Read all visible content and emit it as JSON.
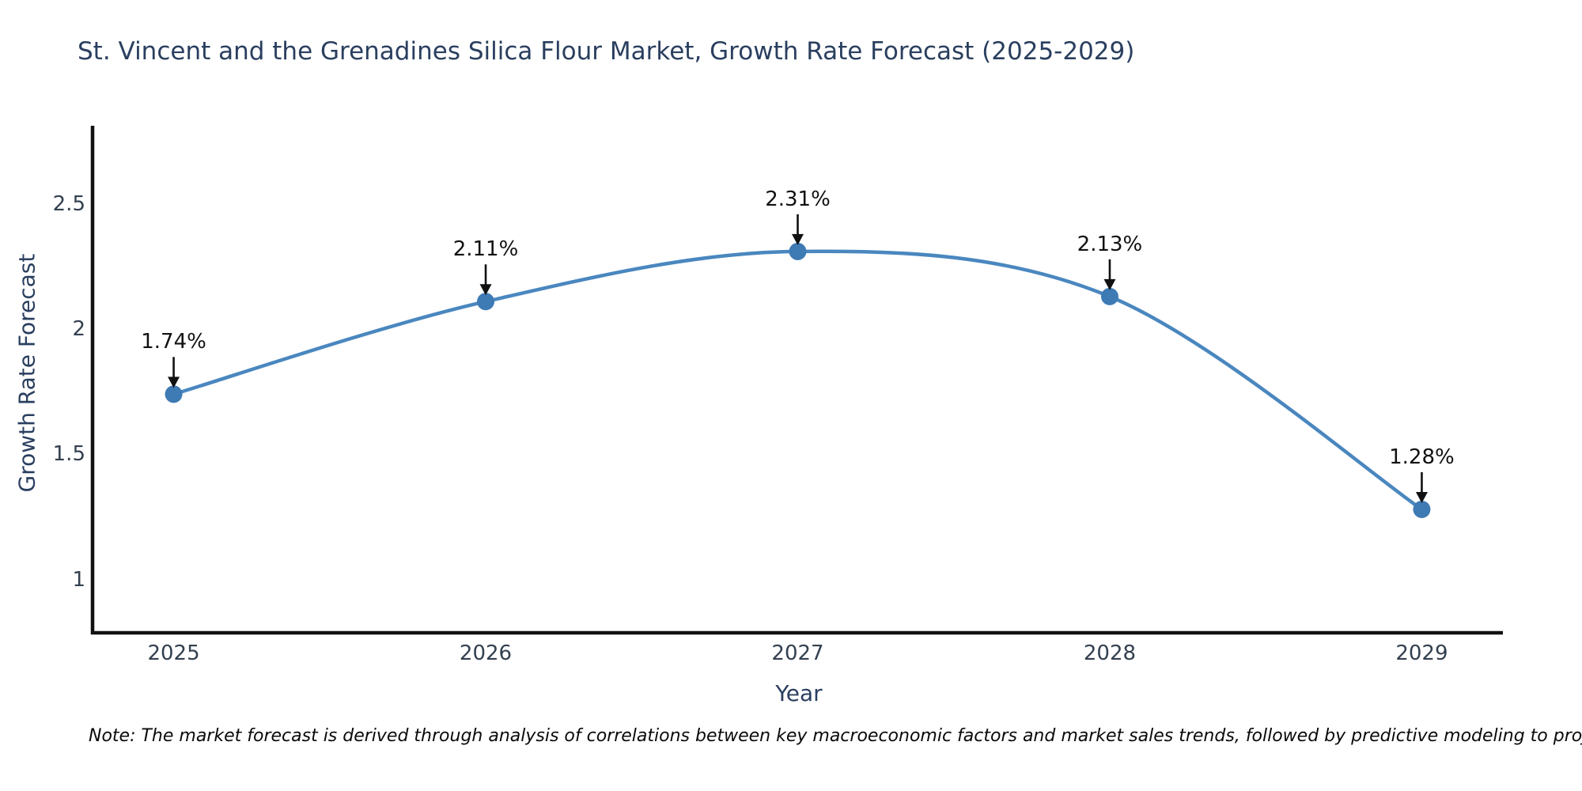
{
  "title": "St. Vincent and the Grenadines Silica Flour Market, Growth Rate Forecast (2025-2029)",
  "footnote": "Note: The market forecast is derived through analysis of correlations between key macroeconomic factors and market sales trends, followed by predictive modeling to project future sales",
  "chart_data": {
    "type": "line",
    "line_shape": "spline",
    "title": "St. Vincent and the Grenadines Silica Flour Market, Growth Rate Forecast (2025-2029)",
    "xlabel": "Year",
    "ylabel": "Growth Rate Forecast",
    "x": [
      2025,
      2026,
      2027,
      2028,
      2029
    ],
    "series": [
      {
        "name": "Growth Rate Forecast",
        "values": [
          1.74,
          2.11,
          2.31,
          2.13,
          1.28
        ]
      }
    ],
    "point_labels": [
      "1.74%",
      "2.11%",
      "2.31%",
      "2.13%",
      "1.28%"
    ],
    "x_ticks": [
      "2025",
      "2026",
      "2027",
      "2028",
      "2029"
    ],
    "y_ticks": [
      "1",
      "1.5",
      "2",
      "2.5"
    ],
    "y_tick_values": [
      1,
      1.5,
      2,
      2.5
    ],
    "xlim": [
      2024.74,
      2029.26
    ],
    "ylim": [
      0.787,
      2.812
    ],
    "grid": false,
    "legend": "none",
    "colors": {
      "line": "#4a87bf",
      "marker": "#3e7ab4",
      "axis": "#111111",
      "heading_text": "#2a3f5f",
      "tick_text": "#33404f",
      "annotation_text": "#111111"
    }
  }
}
